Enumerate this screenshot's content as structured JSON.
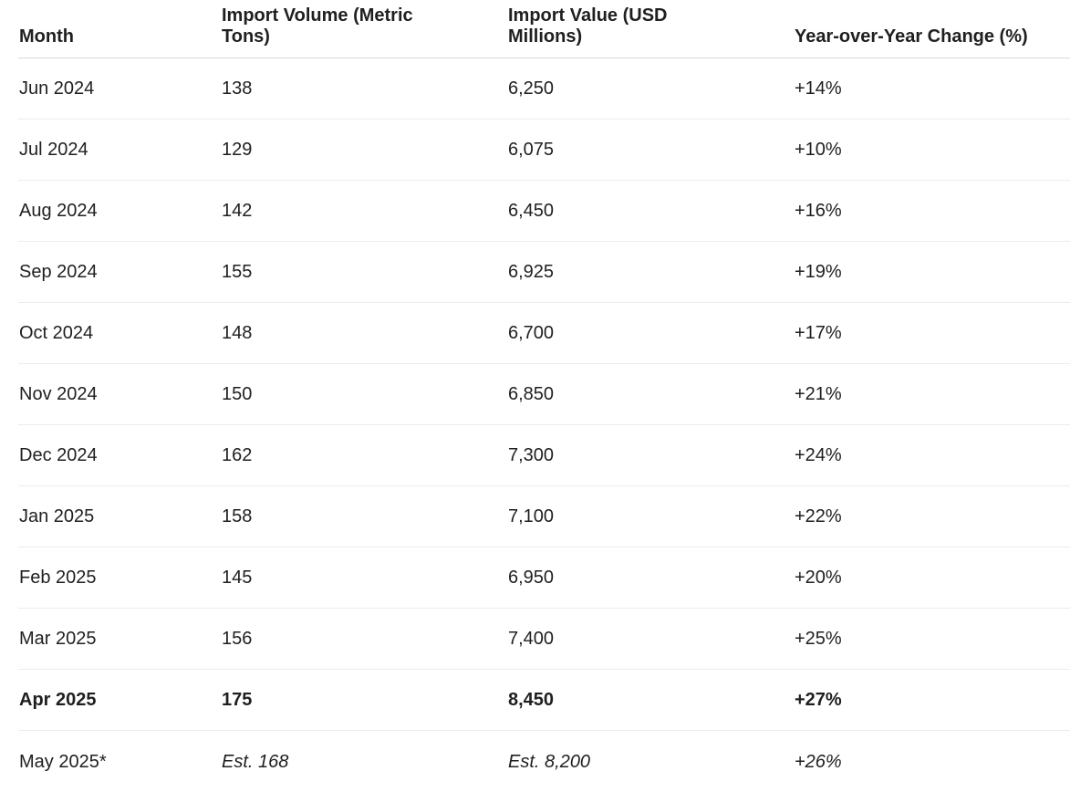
{
  "table": {
    "headers": [
      "Month",
      "Import Volume (Metric Tons)",
      "Import Value (USD Millions)",
      "Year-over-Year Change (%)"
    ],
    "rows": [
      [
        "Jun 2024",
        "138",
        "6,250",
        "+14%"
      ],
      [
        "Jul 2024",
        "129",
        "6,075",
        "+10%"
      ],
      [
        "Aug 2024",
        "142",
        "6,450",
        "+16%"
      ],
      [
        "Sep 2024",
        "155",
        "6,925",
        "+19%"
      ],
      [
        "Oct 2024",
        "148",
        "6,700",
        "+17%"
      ],
      [
        "Nov 2024",
        "150",
        "6,850",
        "+21%"
      ],
      [
        "Dec 2024",
        "162",
        "7,300",
        "+24%"
      ],
      [
        "Jan 2025",
        "158",
        "7,100",
        "+22%"
      ],
      [
        "Feb 2025",
        "145",
        "6,950",
        "+20%"
      ],
      [
        "Mar 2025",
        "156",
        "7,400",
        "+25%"
      ],
      [
        "Apr 2025",
        "175",
        "8,450",
        "+27%"
      ],
      [
        "May 2025*",
        "Est. 168",
        "Est. 8,200",
        "+26%"
      ]
    ],
    "bold_row": 10,
    "estimate_row": 11
  }
}
